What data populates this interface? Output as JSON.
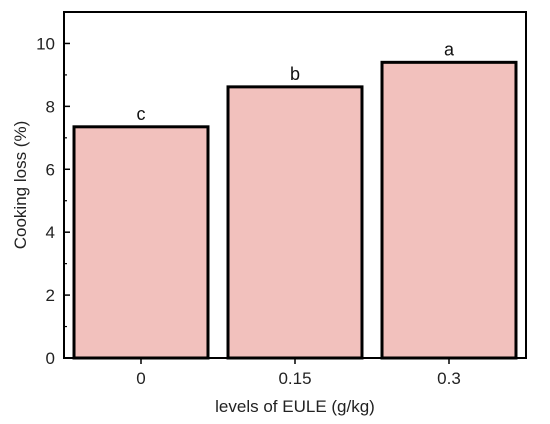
{
  "chart_data": {
    "type": "bar",
    "xlabel": "levels of EULE (g/kg)",
    "ylabel": "Cooking loss (%)",
    "categories": [
      "0",
      "0.15",
      "0.3"
    ],
    "values": [
      7.35,
      8.62,
      9.4
    ],
    "letters": [
      "c",
      "b",
      "a"
    ],
    "ylim": [
      0,
      11
    ],
    "yticks": [
      0,
      2,
      4,
      6,
      8,
      10
    ],
    "bar_color": "#f2c1bd",
    "bar_edge_color": "#000000",
    "grid": false,
    "legend": "none"
  }
}
